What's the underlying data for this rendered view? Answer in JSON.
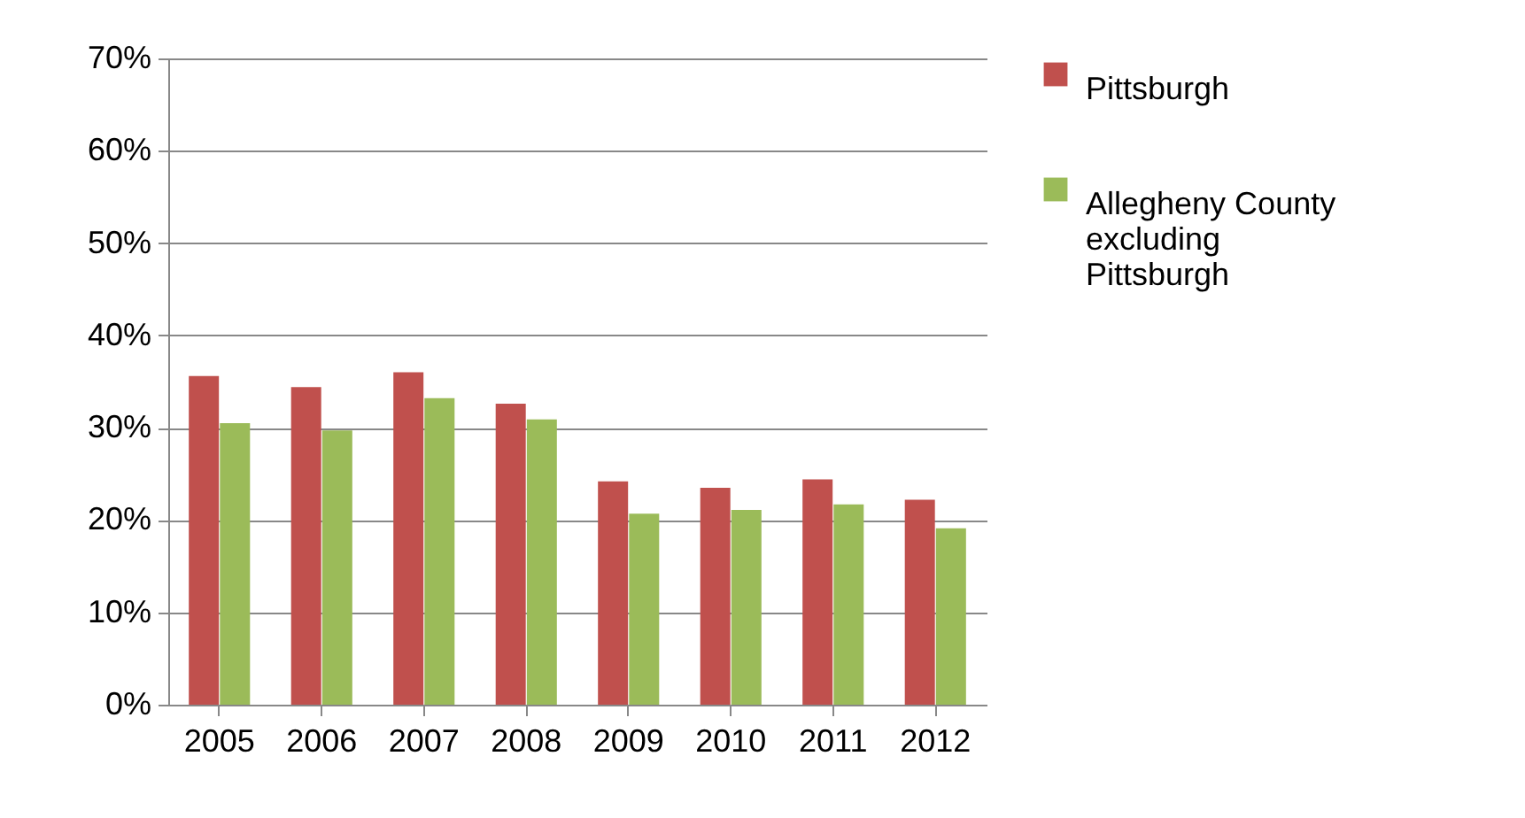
{
  "chart_data": {
    "type": "bar",
    "categories": [
      "2005",
      "2006",
      "2007",
      "2008",
      "2009",
      "2010",
      "2011",
      "2012"
    ],
    "series": [
      {
        "name": "Pittsburgh",
        "color": "#c0504d",
        "values": [
          35.6,
          34.4,
          36.0,
          32.6,
          24.2,
          23.5,
          24.4,
          22.2
        ]
      },
      {
        "name": "Allegheny County excluding Pittsburgh",
        "color": "#9bbb59",
        "values": [
          30.5,
          29.7,
          33.2,
          30.9,
          20.7,
          21.1,
          21.7,
          19.1
        ]
      }
    ],
    "ylim": [
      0,
      70
    ],
    "yticks": [
      {
        "value": 0,
        "label": "0%"
      },
      {
        "value": 10,
        "label": "10%"
      },
      {
        "value": 20,
        "label": "20%"
      },
      {
        "value": 30,
        "label": "30%"
      },
      {
        "value": 40,
        "label": "40%"
      },
      {
        "value": 50,
        "label": "50%"
      },
      {
        "value": 60,
        "label": "60%"
      },
      {
        "value": 70,
        "label": "70%"
      }
    ],
    "grid": "y",
    "legend": "right"
  }
}
